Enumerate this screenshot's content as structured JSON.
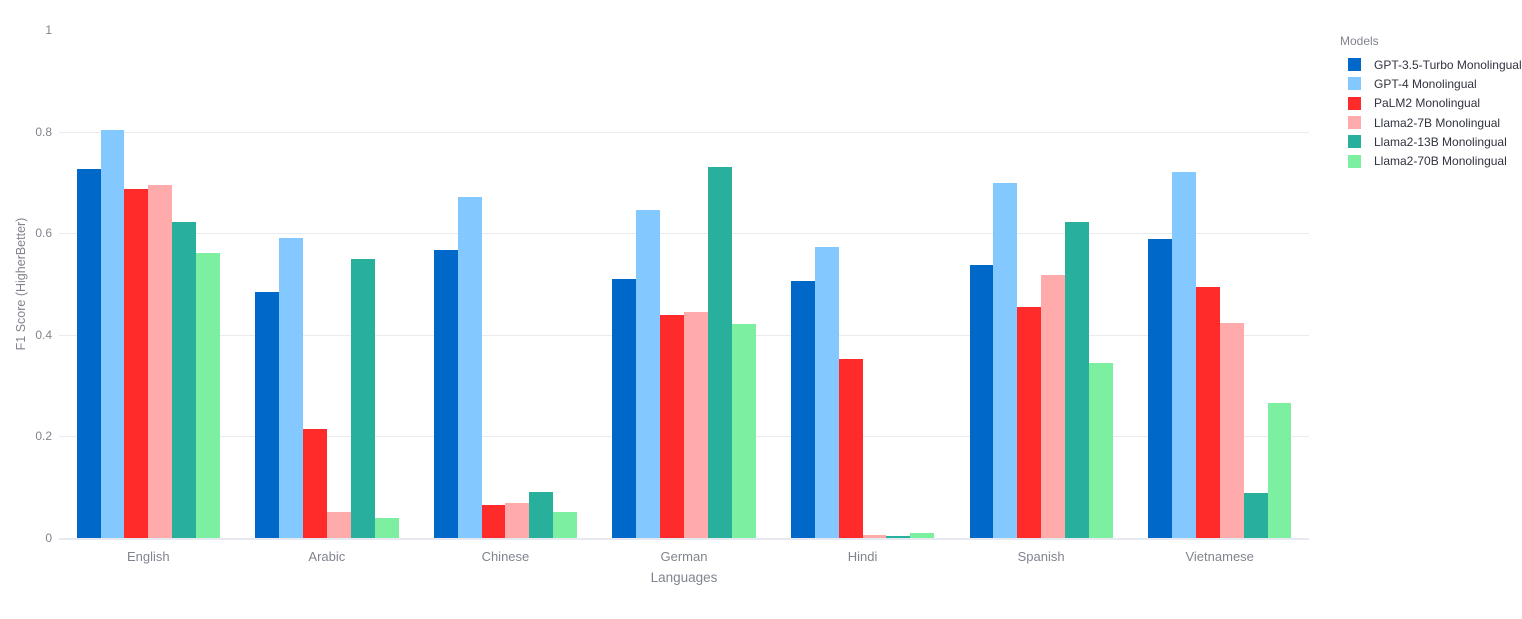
{
  "chart_data": {
    "type": "bar",
    "title": "",
    "xlabel": "Languages",
    "ylabel": "F1 Score (HigherBetter)",
    "legend_title": "Models",
    "legend_position": "right",
    "grid": true,
    "ylim": [
      0,
      1
    ],
    "yticks": [
      0,
      0.2,
      0.4,
      0.6,
      0.8,
      1
    ],
    "categories": [
      "English",
      "Arabic",
      "Chinese",
      "German",
      "Hindi",
      "Spanish",
      "Vietnamese"
    ],
    "series": [
      {
        "name": "GPT-3.5-Turbo Monolingual",
        "color": "#0068c9",
        "values": [
          0.727,
          0.484,
          0.567,
          0.51,
          0.506,
          0.537,
          0.589
        ]
      },
      {
        "name": "GPT-4 Monolingual",
        "color": "#83c9ff",
        "values": [
          0.803,
          0.591,
          0.671,
          0.646,
          0.573,
          0.699,
          0.72
        ]
      },
      {
        "name": "PaLM2 Monolingual",
        "color": "#ff2b2b",
        "values": [
          0.688,
          0.215,
          0.065,
          0.439,
          0.352,
          0.455,
          0.494
        ]
      },
      {
        "name": "Llama2-7B Monolingual",
        "color": "#ffabab",
        "values": [
          0.695,
          0.051,
          0.069,
          0.445,
          0.006,
          0.518,
          0.423
        ]
      },
      {
        "name": "Llama2-13B Monolingual",
        "color": "#29b09d",
        "values": [
          0.622,
          0.549,
          0.091,
          0.73,
          0.004,
          0.622,
          0.089
        ]
      },
      {
        "name": "Llama2-70B Monolingual",
        "color": "#7defa1",
        "values": [
          0.561,
          0.039,
          0.051,
          0.421,
          0.009,
          0.344,
          0.266
        ]
      }
    ]
  },
  "colors": {
    "background": "#ffffff",
    "gridline": "#e9ebf1",
    "axis_line": "#e6e9f0",
    "tick_text": "#81848f",
    "legend_text": "#31333f"
  }
}
